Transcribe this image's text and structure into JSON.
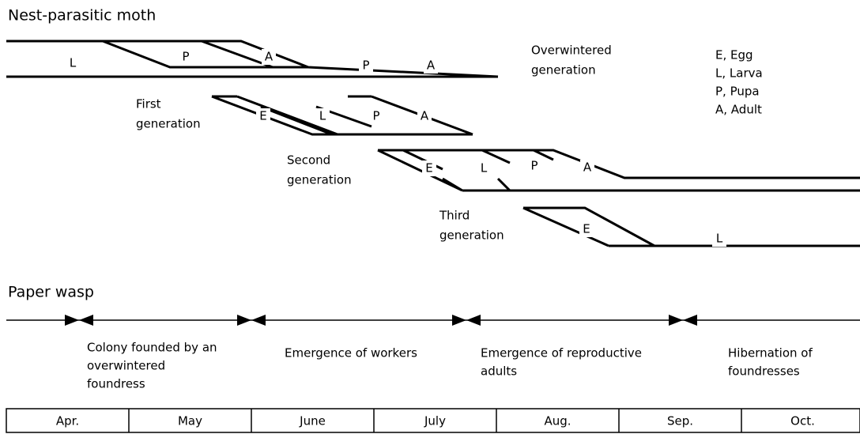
{
  "moth": {
    "title": "Nest-parasitic moth",
    "generations": [
      {
        "label": [
          "Overwintered",
          "generation"
        ],
        "stages": [
          "L",
          "P",
          "A",
          "P",
          "A"
        ]
      },
      {
        "label": [
          "First",
          "generation"
        ],
        "stages": [
          "E",
          "L",
          "P",
          "A"
        ]
      },
      {
        "label": [
          "Second",
          "generation"
        ],
        "stages": [
          "E",
          "L",
          "P",
          "A"
        ]
      },
      {
        "label": [
          "Third",
          "generation"
        ],
        "stages": [
          "E",
          "L"
        ]
      }
    ],
    "legend": [
      "E, Egg",
      "L, Larva",
      "P, Pupa",
      "A, Adult"
    ]
  },
  "wasp": {
    "title": "Paper wasp",
    "phases": [
      [
        "Colony founded by an",
        "overwintered",
        "foundress"
      ],
      [
        "Emergence of workers"
      ],
      [
        "Emergence of reproductive",
        "adults"
      ],
      [
        "Hibernation of",
        "foundresses"
      ]
    ]
  },
  "months": [
    "Apr.",
    "May",
    "June",
    "July",
    "Aug.",
    "Sep.",
    "Oct."
  ]
}
